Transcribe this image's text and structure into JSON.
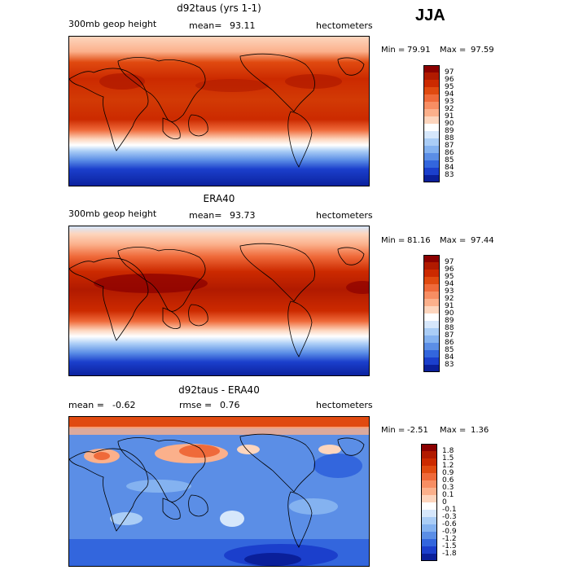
{
  "season": "JJA",
  "panels": [
    {
      "title": "d92taus (yrs 1-1)",
      "left_label": "300mb geop height",
      "mean_label": "mean=",
      "mean_value": "93.11",
      "units": "hectometers",
      "min_label": "Min =",
      "min_value": "79.91",
      "max_label": "Max =",
      "max_value": "97.59",
      "colorbar_labels": [
        "97",
        "96",
        "95",
        "94",
        "93",
        "92",
        "91",
        "90",
        "89",
        "88",
        "87",
        "86",
        "85",
        "84",
        "83"
      ],
      "colorbar_colors": [
        "#8b0000",
        "#b11a00",
        "#cc2a00",
        "#e04a10",
        "#ef6a3a",
        "#f78e63",
        "#fbb08b",
        "#fdd5bd",
        "#ffffff",
        "#d6e7fb",
        "#aacdf6",
        "#84b2f0",
        "#5b8ee6",
        "#3366dd",
        "#1b3fcc",
        "#0a1f9a"
      ]
    },
    {
      "title": "ERA40",
      "left_label": "300mb geop height",
      "mean_label": "mean=",
      "mean_value": "93.73",
      "units": "hectometers",
      "min_label": "Min =",
      "min_value": "81.16",
      "max_label": "Max =",
      "max_value": "97.44",
      "colorbar_labels": [
        "97",
        "96",
        "95",
        "94",
        "93",
        "92",
        "91",
        "90",
        "89",
        "88",
        "87",
        "86",
        "85",
        "84",
        "83"
      ],
      "colorbar_colors": [
        "#8b0000",
        "#b11a00",
        "#cc2a00",
        "#e04a10",
        "#ef6a3a",
        "#f78e63",
        "#fbb08b",
        "#fdd5bd",
        "#ffffff",
        "#d6e7fb",
        "#aacdf6",
        "#84b2f0",
        "#5b8ee6",
        "#3366dd",
        "#1b3fcc",
        "#0a1f9a"
      ]
    },
    {
      "title": "d92taus - ERA40",
      "mean_label": "mean =",
      "mean_value": "-0.62",
      "rmse_label": "rmse =",
      "rmse_value": "0.76",
      "units": "hectometers",
      "min_label": "Min =",
      "min_value": "-2.51",
      "max_label": "Max =",
      "max_value": "1.36",
      "colorbar_labels": [
        "1.8",
        "1.5",
        "1.2",
        "0.9",
        "0.6",
        "0.3",
        "0.1",
        "0",
        "-0.1",
        "-0.3",
        "-0.6",
        "-0.9",
        "-1.2",
        "-1.5",
        "-1.8"
      ],
      "colorbar_colors": [
        "#8b0000",
        "#b11a00",
        "#cc2a00",
        "#e04a10",
        "#ef6a3a",
        "#f78e63",
        "#fbb08b",
        "#fdd5bd",
        "#ffffff",
        "#d6e7fb",
        "#aacdf6",
        "#84b2f0",
        "#5b8ee6",
        "#3366dd",
        "#1b3fcc",
        "#0a1f9a"
      ]
    }
  ]
}
